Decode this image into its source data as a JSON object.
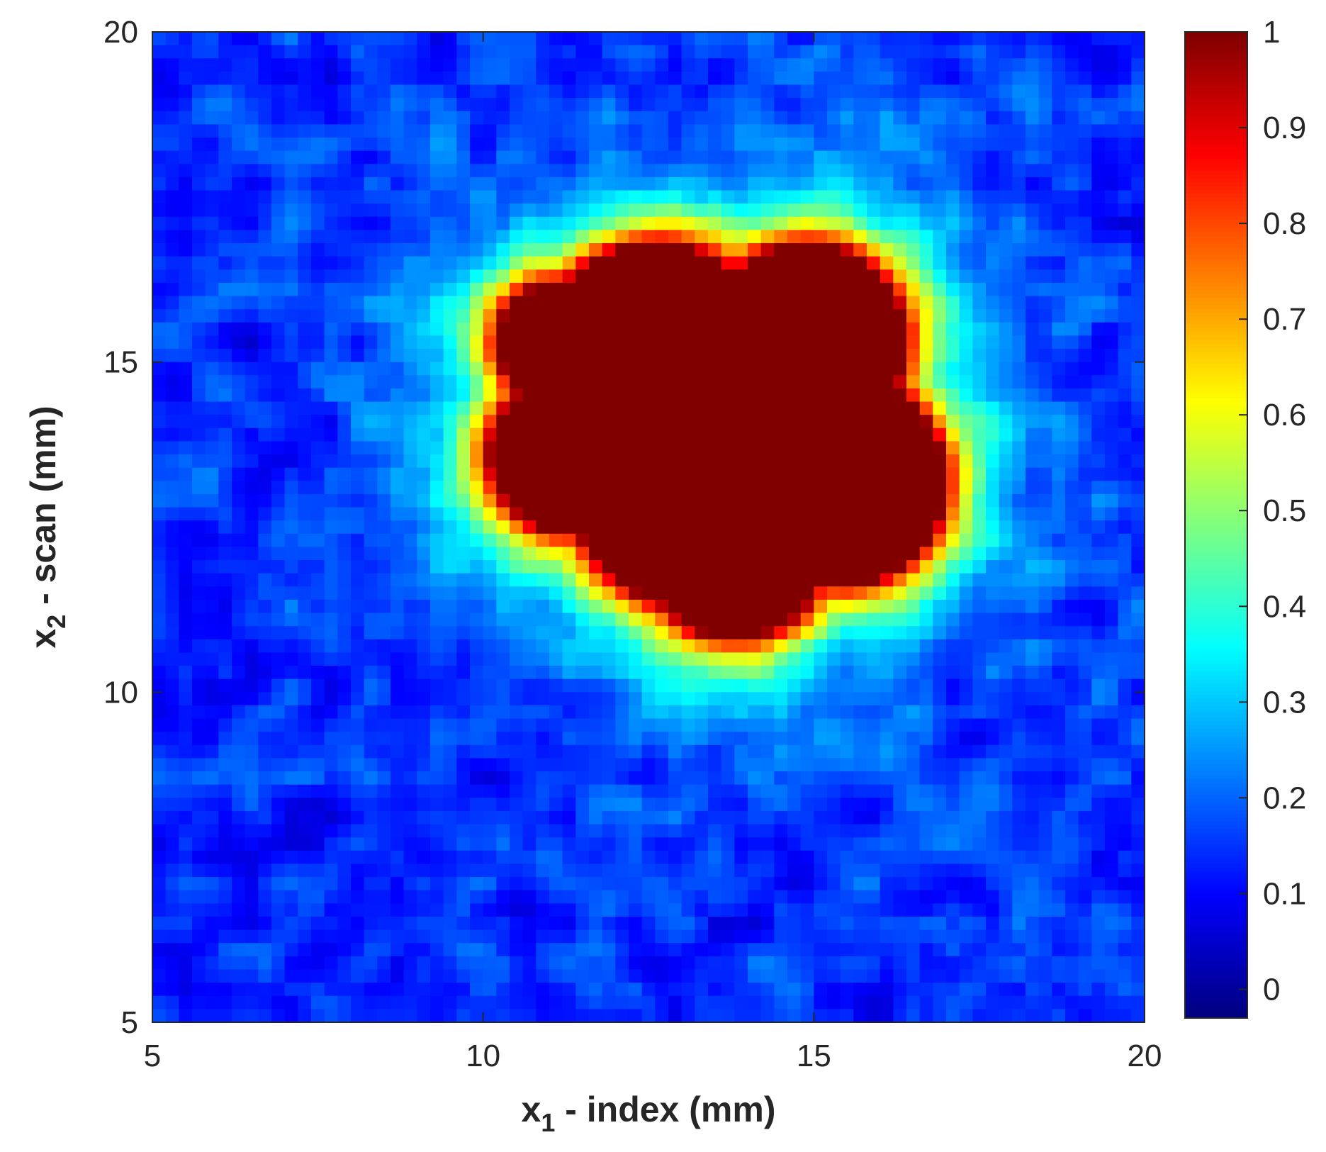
{
  "chart_data": {
    "type": "heatmap",
    "title": "",
    "xlabel": {
      "base": "x",
      "sub": "1",
      "text": " - index (mm)"
    },
    "ylabel": {
      "base": "x",
      "sub": "2",
      "text": " - scan (mm)"
    },
    "xlim": [
      5,
      20
    ],
    "ylim": [
      5,
      20
    ],
    "xticks": [
      5,
      10,
      15,
      20
    ],
    "yticks": [
      5,
      10,
      15,
      20
    ],
    "colormap": "jet",
    "clim": [
      -0.03,
      1.0
    ],
    "colorbar": {
      "ticks": [
        0,
        0.1,
        0.2,
        0.3,
        0.4,
        0.5,
        0.6,
        0.7,
        0.8,
        0.9,
        1
      ],
      "tick_labels": [
        "0",
        "0.1",
        "0.2",
        "0.3",
        "0.4",
        "0.5",
        "0.6",
        "0.7",
        "0.8",
        "0.9",
        "1"
      ]
    },
    "grid_resolution": [
      75,
      75
    ],
    "feature": {
      "description": "saturated region (value 1) bounded by a steep gradient over a noisy background near 0.1",
      "center_mm": [
        13.6,
        13.8
      ],
      "background_level": 0.1,
      "lobes": [
        {
          "center_mm": [
            12.6,
            15.0
          ],
          "radius_mm": 1.7
        },
        {
          "center_mm": [
            14.9,
            15.3
          ],
          "radius_mm": 1.4
        },
        {
          "center_mm": [
            11.1,
            15.3
          ],
          "radius_mm": 0.8
        },
        {
          "center_mm": [
            11.3,
            13.6
          ],
          "radius_mm": 1.1
        },
        {
          "center_mm": [
            13.4,
            13.4
          ],
          "radius_mm": 2.1
        },
        {
          "center_mm": [
            15.4,
            13.2
          ],
          "radius_mm": 1.5
        },
        {
          "center_mm": [
            16.2,
            12.8
          ],
          "radius_mm": 0.6
        },
        {
          "center_mm": [
            13.8,
            12.2
          ],
          "radius_mm": 1.3
        }
      ]
    }
  }
}
